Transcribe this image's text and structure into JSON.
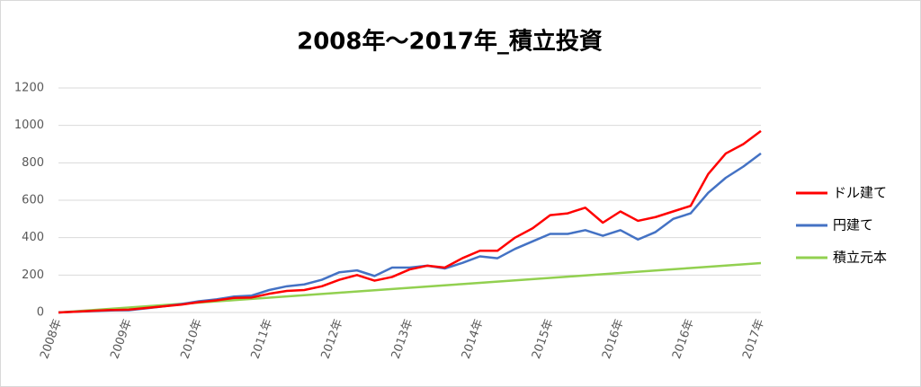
{
  "chart_data": {
    "type": "line",
    "title": "2008年～2017年_積立投資",
    "categories": [
      "2008年",
      null,
      null,
      null,
      "2009年",
      null,
      null,
      null,
      "2010年",
      null,
      null,
      null,
      "2011年",
      null,
      null,
      null,
      "2012年",
      null,
      null,
      null,
      "2013年",
      null,
      null,
      null,
      "2014年",
      null,
      null,
      null,
      "2015年",
      null,
      null,
      null,
      "2016年",
      null,
      null,
      null,
      "2016年",
      null,
      null,
      null,
      "2017年"
    ],
    "series": [
      {
        "name": "ドル建て",
        "color": "#ff0000",
        "values": [
          0,
          4,
          9,
          13,
          15,
          24,
          33,
          42,
          55,
          65,
          78,
          80,
          100,
          115,
          120,
          140,
          175,
          200,
          170,
          190,
          230,
          250,
          240,
          290,
          330,
          330,
          400,
          450,
          520,
          530,
          560,
          480,
          540,
          490,
          510,
          540,
          570,
          740,
          850,
          900,
          970
        ]
      },
      {
        "name": "円建て",
        "color": "#4472c4",
        "values": [
          0,
          4,
          8,
          11,
          12,
          22,
          33,
          45,
          60,
          70,
          85,
          90,
          120,
          140,
          150,
          175,
          215,
          225,
          195,
          240,
          240,
          250,
          235,
          265,
          300,
          290,
          340,
          380,
          420,
          420,
          440,
          410,
          440,
          390,
          430,
          500,
          530,
          640,
          720,
          780,
          850
        ]
      },
      {
        "name": "積立元本",
        "color": "#92d050",
        "values": [
          0,
          6.6,
          13.2,
          19.8,
          26.4,
          33,
          39.6,
          46.2,
          52.8,
          59.4,
          66,
          72.6,
          79.2,
          85.8,
          92.4,
          99,
          105.6,
          112.2,
          118.8,
          125.4,
          132,
          138.6,
          145.2,
          151.8,
          158.4,
          165,
          171.6,
          178.2,
          184.8,
          191.4,
          198,
          204.6,
          211.2,
          217.8,
          224.4,
          231,
          237.6,
          244.2,
          250.8,
          257.4,
          264
        ]
      }
    ],
    "ylim": [
      0,
      1200
    ],
    "yticks": [
      0,
      200,
      400,
      600,
      800,
      1000,
      1200
    ],
    "grid": true,
    "legend": "right"
  }
}
